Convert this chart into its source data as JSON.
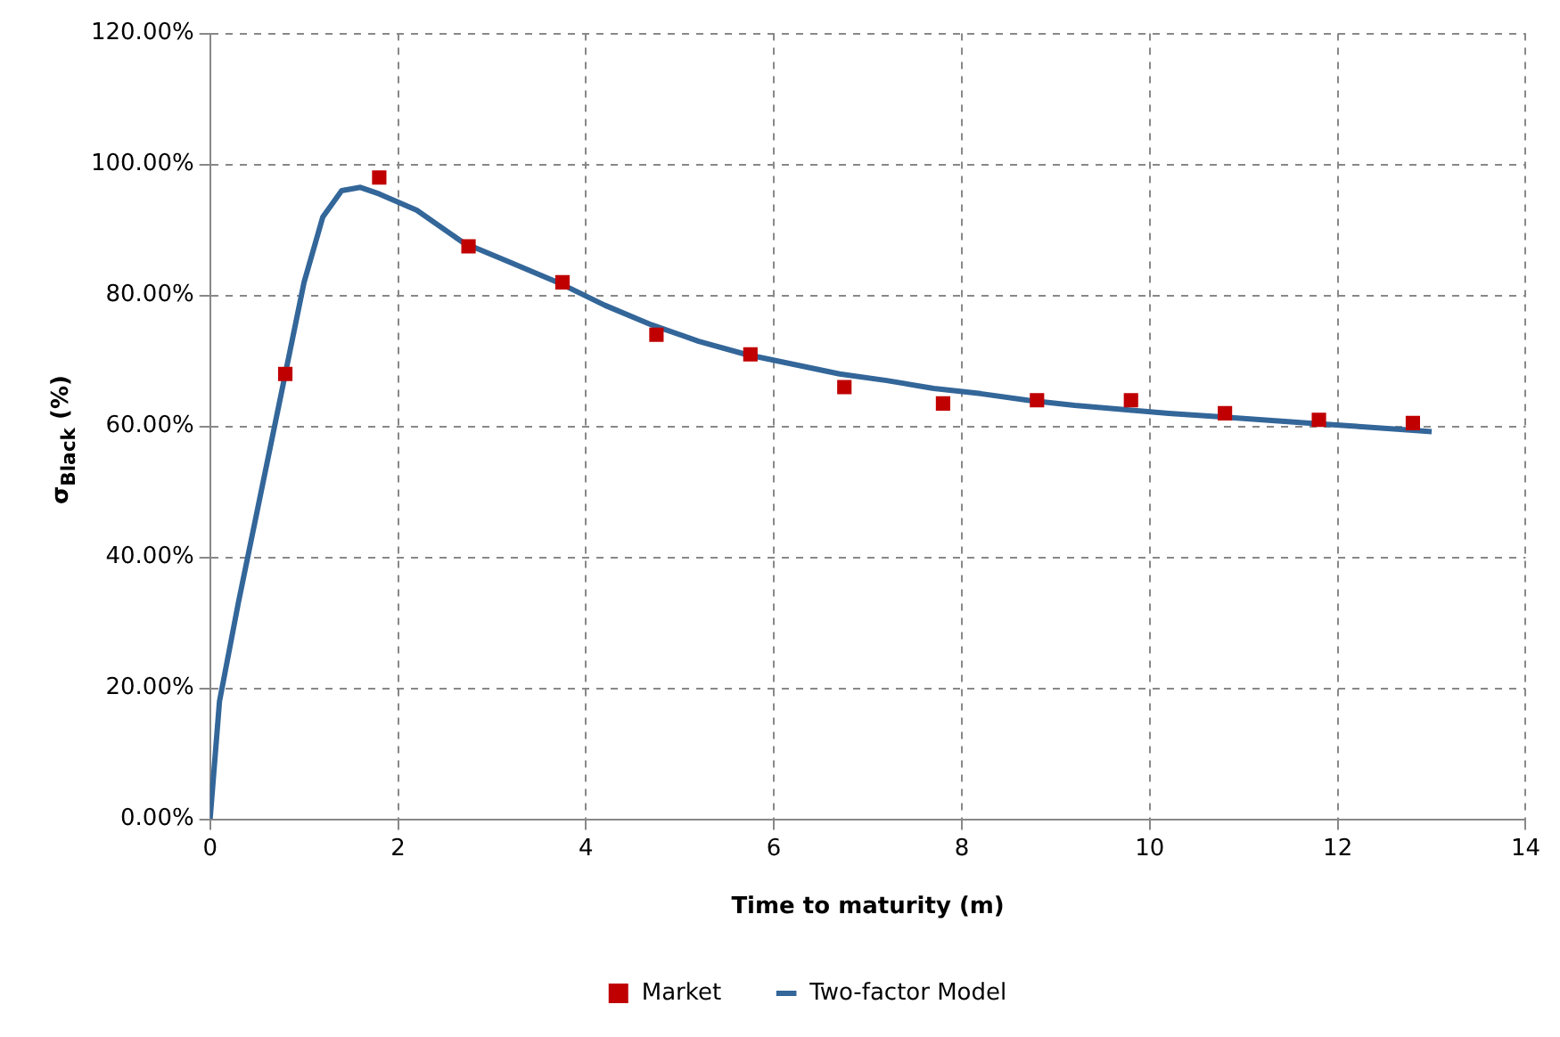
{
  "chart_data": {
    "type": "scatter",
    "xlabel": "Time to maturity (m)",
    "ylabel": "σ$_{Black}$ (%)",
    "xlim": [
      0,
      14
    ],
    "xticks": [
      0,
      2,
      4,
      6,
      8,
      10,
      12,
      14
    ],
    "ylim": [
      0,
      120
    ],
    "yticks": [
      {
        "value": 0,
        "label": "0.00%"
      },
      {
        "value": 20,
        "label": "20.00%"
      },
      {
        "value": 40,
        "label": "40.00%"
      },
      {
        "value": 60,
        "label": "60.00%"
      },
      {
        "value": 80,
        "label": "80.00%"
      },
      {
        "value": 100,
        "label": "100.00%"
      },
      {
        "value": 120,
        "label": "120.00%"
      }
    ],
    "grid": true,
    "legend": "bottom",
    "series": [
      {
        "name": "Market",
        "marker": "square",
        "color": "#c00000",
        "x": [
          0.8,
          1.8,
          2.75,
          3.75,
          4.75,
          5.75,
          6.75,
          7.8,
          8.8,
          9.8,
          10.8,
          11.8,
          12.8
        ],
        "values": [
          68,
          98,
          87.5,
          82,
          74,
          71,
          66,
          63.5,
          64,
          64,
          62,
          61,
          60.5
        ]
      },
      {
        "name": "Two-factor Model",
        "type": "line",
        "marker": "none",
        "line_style": "solid",
        "color": "#336699",
        "x": [
          0,
          0.1,
          0.3,
          0.5,
          0.8,
          1.0,
          1.2,
          1.4,
          1.6,
          1.8,
          2.2,
          2.7,
          3.2,
          3.7,
          4.2,
          4.7,
          5.2,
          5.7,
          6.2,
          6.7,
          7.2,
          7.7,
          8.2,
          8.7,
          9.2,
          9.7,
          10.2,
          10.7,
          11.2,
          11.7,
          12.2,
          12.7,
          13
        ],
        "values": [
          0,
          18,
          33,
          47,
          68,
          82,
          92,
          96,
          96.5,
          95.5,
          93,
          88,
          85,
          82,
          78.5,
          75.5,
          73,
          71,
          69.5,
          68,
          67,
          65.8,
          65,
          64,
          63.2,
          62.6,
          62,
          61.5,
          61,
          60.5,
          60,
          59.5,
          59.2
        ]
      }
    ]
  }
}
